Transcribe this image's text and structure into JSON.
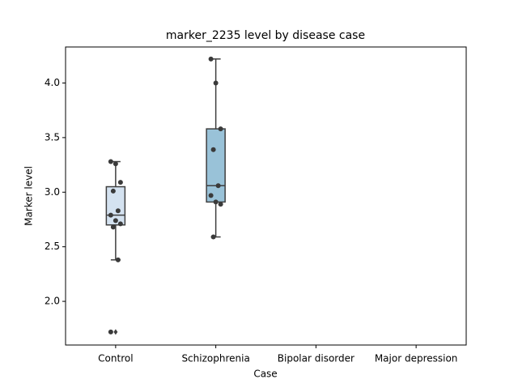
{
  "chart_data": {
    "type": "box",
    "title": "marker_2235 level by disease case",
    "xlabel": "Case",
    "ylabel": "Marker level",
    "categories": [
      "Control",
      "Schizophrenia",
      "Bipolar disorder",
      "Major depression"
    ],
    "boxes": [
      {
        "q1": 2.7,
        "median": 2.79,
        "q3": 3.05,
        "whisker_low": 2.38,
        "whisker_high": 3.28,
        "outliers": [
          1.72
        ],
        "color": "#d4e2f0"
      },
      {
        "q1": 2.91,
        "median": 3.06,
        "q3": 3.58,
        "whisker_low": 2.59,
        "whisker_high": 4.22,
        "outliers": [],
        "color": "#99c2d8"
      },
      null,
      null
    ],
    "points": [
      [
        3.28,
        3.26,
        3.09,
        3.01,
        2.83,
        2.79,
        2.74,
        2.71,
        2.68,
        2.38,
        1.72
      ],
      [
        4.22,
        4.0,
        3.58,
        3.39,
        3.06,
        2.97,
        2.91,
        2.89,
        2.59
      ],
      [],
      []
    ],
    "point_color": "#3a3a3a",
    "ylim": [
      1.6,
      4.33
    ],
    "yticks": [
      {
        "value": 2,
        "label": "2.0"
      },
      2.5,
      {
        "value": 3,
        "label": "3.0"
      },
      3.5,
      {
        "value": 4,
        "label": "4.0"
      }
    ],
    "grid": false
  }
}
